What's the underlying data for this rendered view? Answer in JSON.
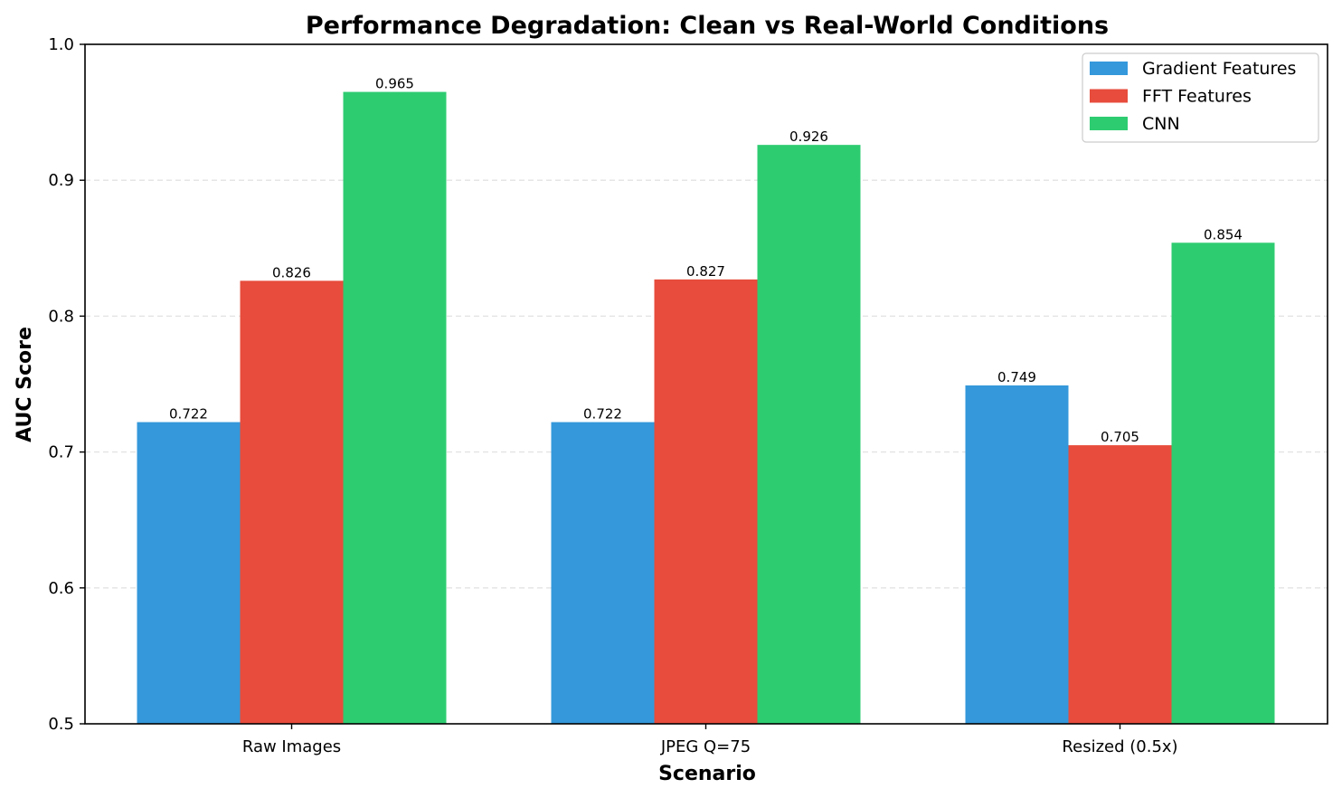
{
  "chart_data": {
    "type": "bar",
    "title": "Performance Degradation: Clean vs Real-World Conditions",
    "xlabel": "Scenario",
    "ylabel": "AUC Score",
    "categories": [
      "Raw Images",
      "JPEG Q=75",
      "Resized (0.5x)"
    ],
    "series": [
      {
        "name": "Gradient Features",
        "color": "#3498db",
        "values": [
          0.722,
          0.722,
          0.749
        ],
        "labels": [
          "0.722",
          "0.722",
          "0.749"
        ]
      },
      {
        "name": "FFT Features",
        "color": "#e74c3c",
        "values": [
          0.826,
          0.827,
          0.705
        ],
        "labels": [
          "0.826",
          "0.827",
          "0.705"
        ]
      },
      {
        "name": "CNN",
        "color": "#2ecc71",
        "values": [
          0.965,
          0.926,
          0.854
        ],
        "labels": [
          "0.965",
          "0.926",
          "0.854"
        ]
      }
    ],
    "ylim": [
      0.5,
      1.0
    ],
    "yticks": [
      {
        "value": 0.5,
        "label": "0.5"
      },
      {
        "value": 0.6,
        "label": "0.6"
      },
      {
        "value": 0.7,
        "label": "0.7"
      },
      {
        "value": 0.8,
        "label": "0.8"
      },
      {
        "value": 0.9,
        "label": "0.9"
      },
      {
        "value": 1.0,
        "label": "1.0"
      }
    ],
    "grid": "y-dashed",
    "legend_position": "top-right"
  }
}
